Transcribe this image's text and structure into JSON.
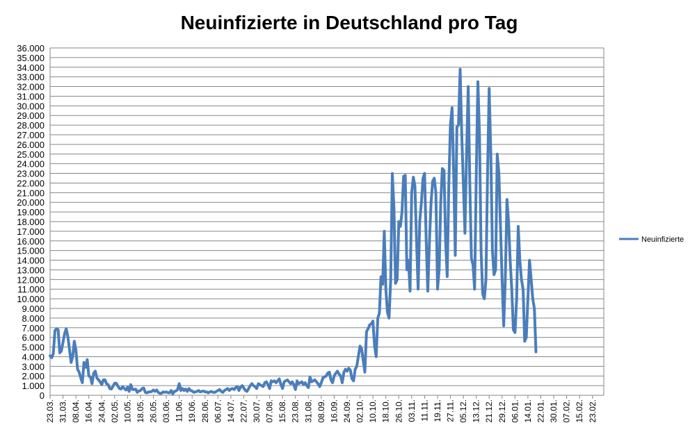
{
  "chart_data": {
    "type": "line",
    "title": "Neuinfizierte in Deutschland pro Tag",
    "xlabel": "",
    "ylabel": "",
    "ylim": [
      0,
      36000
    ],
    "ytick_labels": [
      "0",
      "1.000",
      "2.000",
      "3.000",
      "4.000",
      "5.000",
      "6.000",
      "7.000",
      "8.000",
      "9.000",
      "10.000",
      "11.000",
      "12.000",
      "13.000",
      "14.000",
      "15.000",
      "16.000",
      "17.000",
      "18.000",
      "19.000",
      "20.000",
      "21.000",
      "22.000",
      "23.000",
      "24.000",
      "25.000",
      "26.000",
      "27.000",
      "28.000",
      "29.000",
      "30.000",
      "31.000",
      "32.000",
      "33.000",
      "34.000",
      "35.000",
      "36.000"
    ],
    "xtick_labels": [
      "23.03.",
      "31.03.",
      "08.04.",
      "16.04.",
      "24.04.",
      "02.05.",
      "10.05.",
      "18.05.",
      "26.05.",
      "03.06.",
      "11.06.",
      "19.06.",
      "28.06.",
      "06.07.",
      "14.07.",
      "22.07.",
      "30.07.",
      "07.08.",
      "15.08.",
      "23.08.",
      "31.08.",
      "08.09.",
      "16.09.",
      "24.09.",
      "02.10.",
      "10.10.",
      "18.10.",
      "26.10.",
      "03.11.",
      "11.11.",
      "19.11.",
      "27.11.",
      "05.12.",
      "13.12.",
      "21.12.",
      "29.12.",
      "06.01.",
      "14.01.",
      "22.01.",
      "30.01.",
      "07.02.",
      "15.02.",
      "23.02."
    ],
    "grid": true,
    "legend": "right",
    "series": [
      {
        "name": "Neuinfizierte",
        "color": "#4a7ebb",
        "points": [
          [
            0,
            4100
          ],
          [
            1,
            3900
          ],
          [
            2,
            4300
          ],
          [
            3,
            6700
          ],
          [
            4,
            6900
          ],
          [
            5,
            6800
          ],
          [
            6,
            4400
          ],
          [
            7,
            4600
          ],
          [
            8,
            5500
          ],
          [
            9,
            6400
          ],
          [
            10,
            6900
          ],
          [
            11,
            6100
          ],
          [
            12,
            4800
          ],
          [
            13,
            3400
          ],
          [
            14,
            4000
          ],
          [
            15,
            5600
          ],
          [
            16,
            4700
          ],
          [
            17,
            2700
          ],
          [
            18,
            2400
          ],
          [
            19,
            1800
          ],
          [
            20,
            1300
          ],
          [
            21,
            3400
          ],
          [
            22,
            2900
          ],
          [
            23,
            3700
          ],
          [
            24,
            2000
          ],
          [
            25,
            1900
          ],
          [
            26,
            1200
          ],
          [
            27,
            2300
          ],
          [
            28,
            2500
          ],
          [
            29,
            1800
          ],
          [
            30,
            1600
          ],
          [
            31,
            1400
          ],
          [
            32,
            1100
          ],
          [
            33,
            1600
          ],
          [
            34,
            1600
          ],
          [
            35,
            1200
          ],
          [
            36,
            1100
          ],
          [
            37,
            700
          ],
          [
            38,
            650
          ],
          [
            39,
            950
          ],
          [
            40,
            1250
          ],
          [
            41,
            1250
          ],
          [
            42,
            950
          ],
          [
            43,
            700
          ],
          [
            44,
            650
          ],
          [
            45,
            900
          ],
          [
            46,
            700
          ],
          [
            47,
            550
          ],
          [
            48,
            850
          ],
          [
            49,
            400
          ],
          [
            50,
            1100
          ],
          [
            51,
            600
          ],
          [
            52,
            600
          ],
          [
            53,
            650
          ],
          [
            54,
            300
          ],
          [
            55,
            450
          ],
          [
            56,
            500
          ],
          [
            57,
            700
          ],
          [
            58,
            750
          ],
          [
            59,
            300
          ],
          [
            60,
            250
          ],
          [
            61,
            350
          ],
          [
            62,
            350
          ],
          [
            63,
            400
          ],
          [
            64,
            550
          ],
          [
            65,
            400
          ],
          [
            66,
            550
          ],
          [
            67,
            300
          ],
          [
            68,
            200
          ],
          [
            69,
            200
          ],
          [
            70,
            350
          ],
          [
            71,
            300
          ],
          [
            72,
            350
          ],
          [
            73,
            280
          ],
          [
            74,
            250
          ],
          [
            75,
            500
          ],
          [
            76,
            150
          ],
          [
            77,
            400
          ],
          [
            78,
            450
          ],
          [
            79,
            600
          ],
          [
            80,
            1200
          ],
          [
            81,
            500
          ],
          [
            82,
            700
          ],
          [
            83,
            500
          ],
          [
            84,
            650
          ],
          [
            85,
            400
          ],
          [
            86,
            700
          ],
          [
            87,
            500
          ],
          [
            88,
            450
          ],
          [
            89,
            300
          ],
          [
            90,
            350
          ],
          [
            91,
            400
          ],
          [
            92,
            500
          ],
          [
            93,
            350
          ],
          [
            94,
            400
          ],
          [
            95,
            450
          ],
          [
            96,
            350
          ],
          [
            97,
            350
          ],
          [
            98,
            250
          ],
          [
            99,
            350
          ],
          [
            100,
            400
          ],
          [
            101,
            300
          ],
          [
            102,
            300
          ],
          [
            103,
            400
          ],
          [
            104,
            500
          ],
          [
            105,
            600
          ],
          [
            106,
            400
          ],
          [
            107,
            300
          ],
          [
            108,
            500
          ],
          [
            109,
            600
          ],
          [
            110,
            700
          ],
          [
            111,
            500
          ],
          [
            112,
            650
          ],
          [
            113,
            700
          ],
          [
            114,
            600
          ],
          [
            115,
            800
          ],
          [
            116,
            900
          ],
          [
            117,
            500
          ],
          [
            118,
            850
          ],
          [
            119,
            1000
          ],
          [
            120,
            750
          ],
          [
            121,
            500
          ],
          [
            122,
            400
          ],
          [
            123,
            700
          ],
          [
            124,
            1000
          ],
          [
            125,
            1200
          ],
          [
            126,
            1000
          ],
          [
            127,
            900
          ],
          [
            128,
            700
          ],
          [
            129,
            1200
          ],
          [
            130,
            1100
          ],
          [
            131,
            1000
          ],
          [
            132,
            900
          ],
          [
            133,
            1300
          ],
          [
            134,
            1400
          ],
          [
            135,
            1100
          ],
          [
            136,
            700
          ],
          [
            137,
            1500
          ],
          [
            138,
            1400
          ],
          [
            139,
            1500
          ],
          [
            140,
            1300
          ],
          [
            141,
            1500
          ],
          [
            142,
            1700
          ],
          [
            143,
            1100
          ],
          [
            144,
            700
          ],
          [
            145,
            1400
          ],
          [
            146,
            1500
          ],
          [
            147,
            1600
          ],
          [
            148,
            1400
          ],
          [
            149,
            1200
          ],
          [
            150,
            1400
          ],
          [
            151,
            1100
          ],
          [
            152,
            600
          ],
          [
            153,
            1500
          ],
          [
            154,
            1200
          ],
          [
            155,
            1300
          ],
          [
            156,
            1400
          ],
          [
            157,
            1100
          ],
          [
            158,
            1300
          ],
          [
            159,
            1000
          ],
          [
            160,
            800
          ],
          [
            161,
            1900
          ],
          [
            162,
            1400
          ],
          [
            163,
            1500
          ],
          [
            164,
            1600
          ],
          [
            165,
            1400
          ],
          [
            166,
            1200
          ],
          [
            167,
            900
          ],
          [
            168,
            1300
          ],
          [
            169,
            1800
          ],
          [
            170,
            1900
          ],
          [
            171,
            2000
          ],
          [
            172,
            2300
          ],
          [
            173,
            2400
          ],
          [
            174,
            1600
          ],
          [
            175,
            1300
          ],
          [
            176,
            2000
          ],
          [
            177,
            2300
          ],
          [
            178,
            2500
          ],
          [
            179,
            2200
          ],
          [
            180,
            2000
          ],
          [
            181,
            1300
          ],
          [
            182,
            2400
          ],
          [
            183,
            2700
          ],
          [
            184,
            2500
          ],
          [
            185,
            2800
          ],
          [
            186,
            2600
          ],
          [
            187,
            1700
          ],
          [
            188,
            1500
          ],
          [
            189,
            2700
          ],
          [
            190,
            3000
          ],
          [
            191,
            4100
          ],
          [
            192,
            5100
          ],
          [
            193,
            4800
          ],
          [
            194,
            3600
          ],
          [
            195,
            2400
          ],
          [
            196,
            6600
          ],
          [
            197,
            6900
          ],
          [
            198,
            7300
          ],
          [
            199,
            7400
          ],
          [
            200,
            7700
          ],
          [
            201,
            5100
          ],
          [
            202,
            4000
          ],
          [
            203,
            8000
          ],
          [
            204,
            8500
          ],
          [
            205,
            12300
          ],
          [
            206,
            11500
          ],
          [
            207,
            17000
          ],
          [
            208,
            11000
          ],
          [
            209,
            8600
          ],
          [
            210,
            8000
          ],
          [
            211,
            12000
          ],
          [
            212,
            23000
          ],
          [
            213,
            19500
          ],
          [
            214,
            11600
          ],
          [
            215,
            12000
          ],
          [
            216,
            18000
          ],
          [
            217,
            17500
          ],
          [
            218,
            19000
          ],
          [
            219,
            22700
          ],
          [
            220,
            22800
          ],
          [
            221,
            13000
          ],
          [
            222,
            14000
          ],
          [
            223,
            10800
          ],
          [
            224,
            21000
          ],
          [
            225,
            22600
          ],
          [
            226,
            21700
          ],
          [
            227,
            16000
          ],
          [
            228,
            11000
          ],
          [
            229,
            18000
          ],
          [
            230,
            20000
          ],
          [
            231,
            22500
          ],
          [
            232,
            23000
          ],
          [
            233,
            16000
          ],
          [
            234,
            10800
          ],
          [
            235,
            16000
          ],
          [
            236,
            20000
          ],
          [
            237,
            22200
          ],
          [
            238,
            22500
          ],
          [
            239,
            21000
          ],
          [
            240,
            11000
          ],
          [
            241,
            13000
          ],
          [
            242,
            20000
          ],
          [
            243,
            23500
          ],
          [
            244,
            23300
          ],
          [
            245,
            16000
          ],
          [
            246,
            12300
          ],
          [
            247,
            21800
          ],
          [
            248,
            28000
          ],
          [
            249,
            29800
          ],
          [
            250,
            23000
          ],
          [
            251,
            14500
          ],
          [
            252,
            27800
          ],
          [
            253,
            28000
          ],
          [
            254,
            33800
          ],
          [
            255,
            27000
          ],
          [
            256,
            22000
          ],
          [
            257,
            16800
          ],
          [
            258,
            25000
          ],
          [
            259,
            32000
          ],
          [
            260,
            22000
          ],
          [
            261,
            14200
          ],
          [
            262,
            13500
          ],
          [
            263,
            11000
          ],
          [
            264,
            23000
          ],
          [
            265,
            32500
          ],
          [
            266,
            27000
          ],
          [
            267,
            15000
          ],
          [
            268,
            10500
          ],
          [
            269,
            10000
          ],
          [
            270,
            12000
          ],
          [
            271,
            23000
          ],
          [
            272,
            31800
          ],
          [
            273,
            25000
          ],
          [
            274,
            15000
          ],
          [
            275,
            12500
          ],
          [
            276,
            13000
          ],
          [
            277,
            25000
          ],
          [
            278,
            23000
          ],
          [
            279,
            17500
          ],
          [
            280,
            12000
          ],
          [
            281,
            7200
          ],
          [
            282,
            12000
          ],
          [
            283,
            20300
          ],
          [
            284,
            18000
          ],
          [
            285,
            14000
          ],
          [
            286,
            11000
          ],
          [
            287,
            6800
          ],
          [
            288,
            6500
          ],
          [
            289,
            10000
          ],
          [
            290,
            17500
          ],
          [
            291,
            14000
          ],
          [
            292,
            12000
          ],
          [
            293,
            11000
          ],
          [
            294,
            5600
          ],
          [
            295,
            6000
          ],
          [
            296,
            10000
          ],
          [
            297,
            14000
          ],
          [
            298,
            12000
          ],
          [
            299,
            10000
          ],
          [
            300,
            9000
          ],
          [
            301,
            4500
          ]
        ]
      }
    ]
  }
}
